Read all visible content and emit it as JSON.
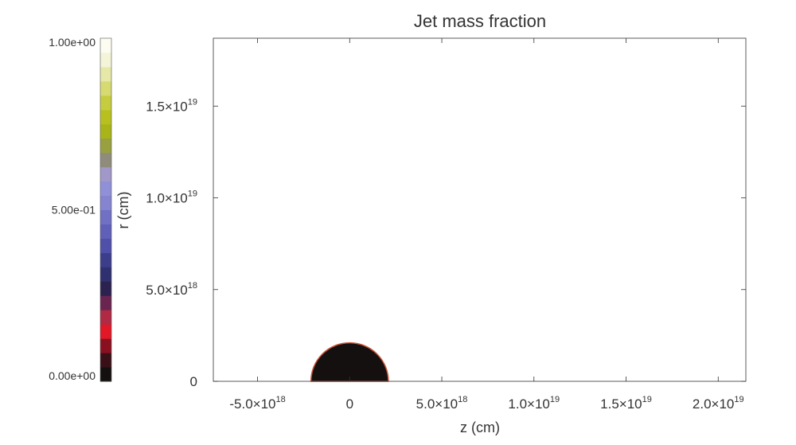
{
  "chart_data": {
    "type": "heatmap",
    "title": "Jet mass fraction",
    "xlabel": "z (cm)",
    "ylabel": "r (cm)",
    "xlim": [
      -7.4e+18,
      2.15e+19
    ],
    "ylim": [
      0,
      1.87e+19
    ],
    "x_ticks": [
      {
        "value": -5e+18,
        "mantissa": "-5.0×10",
        "exp": "18"
      },
      {
        "value": 0,
        "mantissa": "0",
        "exp": ""
      },
      {
        "value": 5e+18,
        "mantissa": "5.0×10",
        "exp": "18"
      },
      {
        "value": 1e+19,
        "mantissa": "1.0×10",
        "exp": "19"
      },
      {
        "value": 1.5e+19,
        "mantissa": "1.5×10",
        "exp": "19"
      },
      {
        "value": 2e+19,
        "mantissa": "2.0×10",
        "exp": "19"
      }
    ],
    "y_ticks": [
      {
        "value": 0,
        "mantissa": "0",
        "exp": ""
      },
      {
        "value": 5e+18,
        "mantissa": "5.0×10",
        "exp": "18"
      },
      {
        "value": 1e+19,
        "mantissa": "1.0×10",
        "exp": "19"
      },
      {
        "value": 1.5e+19,
        "mantissa": "1.5×10",
        "exp": "19"
      }
    ],
    "region": {
      "shape": "half-disk",
      "center_z": 0,
      "center_r": 0,
      "radius": 2.1e+18,
      "value": 0.0,
      "edge_color": "#c8553a"
    },
    "background_value": 1.0,
    "colorbar": {
      "min": 0.0,
      "max": 1.0,
      "labels": [
        {
          "value": 1.0,
          "text": "1.00e+00"
        },
        {
          "value": 0.5,
          "text": "5.00e-01"
        },
        {
          "value": 0.0,
          "text": "0.00e+00"
        }
      ],
      "colors_bottom_to_top": [
        "#141010",
        "#3a1018",
        "#8a1020",
        "#e01828",
        "#b02a44",
        "#6a2450",
        "#2c2250",
        "#2e3070",
        "#3c3e8c",
        "#4e50aa",
        "#6060b8",
        "#7070c4",
        "#8484d0",
        "#9090d8",
        "#a098c8",
        "#908c7c",
        "#98a040",
        "#a8b418",
        "#b8c020",
        "#c6cc40",
        "#d6da70",
        "#e6e8a8",
        "#f4f4d8",
        "#fcfcf0"
      ]
    }
  }
}
